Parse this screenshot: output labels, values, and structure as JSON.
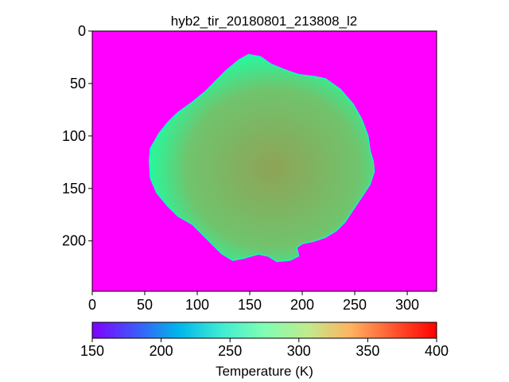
{
  "chart_data": {
    "type": "heatmap",
    "title": "hyb2_tir_20180801_213808_l2",
    "xlabel": "",
    "ylabel": "",
    "xlim": [
      0,
      328
    ],
    "ylim": [
      248,
      0
    ],
    "x_ticks": [
      0,
      50,
      100,
      150,
      200,
      250,
      300
    ],
    "y_ticks": [
      0,
      50,
      100,
      150,
      200
    ],
    "background_value": 150,
    "colormap": "rainbow",
    "colorbar": {
      "label": "Temperature (K)",
      "range": [
        150,
        400
      ],
      "ticks": [
        150,
        200,
        250,
        300,
        350,
        400
      ],
      "orientation": "horizontal",
      "placement": "bottom"
    },
    "object": {
      "description": "asteroid thermal image",
      "outline": [
        [
          149,
          23
        ],
        [
          160,
          25
        ],
        [
          170,
          32
        ],
        [
          182,
          37
        ],
        [
          196,
          42
        ],
        [
          212,
          44
        ],
        [
          222,
          46
        ],
        [
          236,
          56
        ],
        [
          248,
          70
        ],
        [
          256,
          84
        ],
        [
          262,
          100
        ],
        [
          264,
          114
        ],
        [
          267,
          124
        ],
        [
          268,
          134
        ],
        [
          264,
          146
        ],
        [
          256,
          158
        ],
        [
          248,
          170
        ],
        [
          240,
          182
        ],
        [
          232,
          190
        ],
        [
          222,
          196
        ],
        [
          210,
          200
        ],
        [
          200,
          202
        ],
        [
          194,
          206
        ],
        [
          196,
          214
        ],
        [
          188,
          218
        ],
        [
          176,
          219
        ],
        [
          168,
          214
        ],
        [
          158,
          212
        ],
        [
          144,
          216
        ],
        [
          134,
          218
        ],
        [
          124,
          212
        ],
        [
          116,
          204
        ],
        [
          106,
          194
        ],
        [
          96,
          184
        ],
        [
          82,
          176
        ],
        [
          72,
          166
        ],
        [
          62,
          154
        ],
        [
          56,
          140
        ],
        [
          55,
          124
        ],
        [
          56,
          112
        ],
        [
          64,
          98
        ],
        [
          72,
          88
        ],
        [
          82,
          78
        ],
        [
          96,
          68
        ],
        [
          108,
          58
        ],
        [
          118,
          48
        ],
        [
          128,
          38
        ],
        [
          140,
          28
        ]
      ],
      "typical_temperature": 330,
      "core_temperature": 345,
      "rim_temperature": 270
    }
  }
}
